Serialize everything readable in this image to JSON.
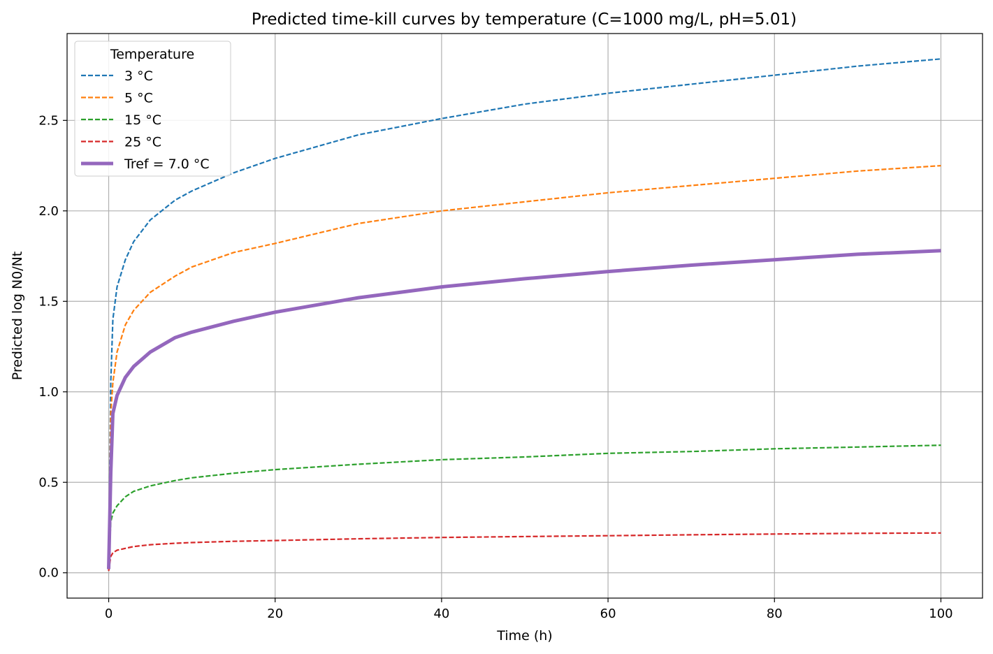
{
  "chart_data": {
    "type": "line",
    "title": "Predicted time-kill curves by temperature (C=1000 mg/L, pH=5.01)",
    "xlabel": "Time (h)",
    "ylabel": "Predicted log N0/Nt",
    "xlim": [
      -5,
      105
    ],
    "ylim": [
      -0.14,
      2.98
    ],
    "x_ticks": [
      0,
      20,
      40,
      60,
      80,
      100
    ],
    "y_ticks": [
      0.0,
      0.5,
      1.0,
      1.5,
      2.0,
      2.5
    ],
    "x_tick_labels": [
      "0",
      "20",
      "40",
      "60",
      "80",
      "100"
    ],
    "y_tick_labels": [
      "0.0",
      "0.5",
      "1.0",
      "1.5",
      "2.0",
      "2.5"
    ],
    "grid": true,
    "legend": {
      "title": "Temperature",
      "placement": "top-left"
    },
    "series": [
      {
        "name": "3 °C",
        "color": "#1f77b4",
        "style": "dashed",
        "x": [
          0,
          0.25,
          0.5,
          1,
          2,
          3,
          5,
          8,
          10,
          15,
          20,
          30,
          40,
          50,
          60,
          70,
          80,
          90,
          100
        ],
        "y": [
          0.02,
          1.05,
          1.4,
          1.58,
          1.73,
          1.83,
          1.95,
          2.06,
          2.11,
          2.21,
          2.29,
          2.42,
          2.51,
          2.59,
          2.65,
          2.7,
          2.75,
          2.8,
          2.84
        ]
      },
      {
        "name": "5 °C",
        "color": "#ff7f0e",
        "style": "dashed",
        "x": [
          0,
          0.25,
          0.5,
          1,
          2,
          3,
          5,
          8,
          10,
          15,
          20,
          30,
          40,
          50,
          60,
          70,
          80,
          90,
          100
        ],
        "y": [
          0.02,
          0.88,
          1.05,
          1.22,
          1.37,
          1.45,
          1.55,
          1.64,
          1.69,
          1.77,
          1.82,
          1.93,
          2.0,
          2.05,
          2.1,
          2.14,
          2.18,
          2.22,
          2.25
        ]
      },
      {
        "name": "15 °C",
        "color": "#2ca02c",
        "style": "dashed",
        "x": [
          0,
          0.25,
          0.5,
          1,
          2,
          3,
          5,
          8,
          10,
          15,
          20,
          30,
          40,
          50,
          60,
          70,
          80,
          90,
          100
        ],
        "y": [
          0.02,
          0.28,
          0.33,
          0.37,
          0.42,
          0.45,
          0.48,
          0.51,
          0.525,
          0.55,
          0.57,
          0.6,
          0.625,
          0.64,
          0.66,
          0.67,
          0.685,
          0.695,
          0.705
        ]
      },
      {
        "name": "25 °C",
        "color": "#d62728",
        "style": "dashed",
        "x": [
          0,
          0.25,
          0.5,
          1,
          2,
          3,
          5,
          8,
          10,
          15,
          20,
          30,
          40,
          50,
          60,
          70,
          80,
          90,
          100
        ],
        "y": [
          0.01,
          0.09,
          0.11,
          0.125,
          0.135,
          0.145,
          0.155,
          0.163,
          0.167,
          0.174,
          0.178,
          0.188,
          0.195,
          0.2,
          0.205,
          0.21,
          0.214,
          0.218,
          0.22
        ]
      },
      {
        "name": "Tref = 7.0 °C",
        "color": "#9467bd",
        "style": "solid",
        "x": [
          0,
          0.25,
          0.5,
          1,
          2,
          3,
          5,
          8,
          10,
          15,
          20,
          30,
          40,
          50,
          60,
          70,
          80,
          90,
          100
        ],
        "y": [
          0.02,
          0.55,
          0.88,
          0.98,
          1.08,
          1.14,
          1.22,
          1.3,
          1.33,
          1.39,
          1.44,
          1.52,
          1.58,
          1.625,
          1.665,
          1.7,
          1.73,
          1.76,
          1.78
        ]
      }
    ]
  }
}
